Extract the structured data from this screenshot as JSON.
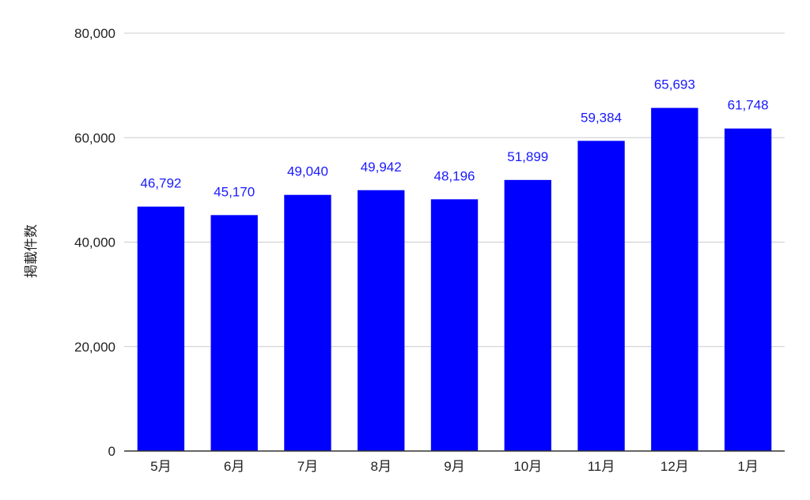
{
  "chart_data": {
    "type": "bar",
    "title": "",
    "xlabel": "",
    "ylabel": "掲載件数",
    "categories": [
      "5月",
      "6月",
      "7月",
      "8月",
      "9月",
      "10月",
      "11月",
      "12月",
      "1月"
    ],
    "values": [
      46792,
      45170,
      49040,
      49942,
      48196,
      51899,
      59384,
      65693,
      61748
    ],
    "data_labels": [
      "46,792",
      "45,170",
      "49,040",
      "49,942",
      "48,196",
      "51,899",
      "59,384",
      "65,693",
      "61,748"
    ],
    "ylim": [
      0,
      80000
    ],
    "yticks": [
      0,
      20000,
      40000,
      60000,
      80000
    ],
    "ytick_labels": [
      "0",
      "20,000",
      "40,000",
      "60,000",
      "80,000"
    ],
    "grid": true,
    "legend": "none",
    "bar_color": "#0000ff",
    "label_color": "#1a1aff",
    "grid_color": "#cccccc",
    "axis_color": "#333333"
  }
}
